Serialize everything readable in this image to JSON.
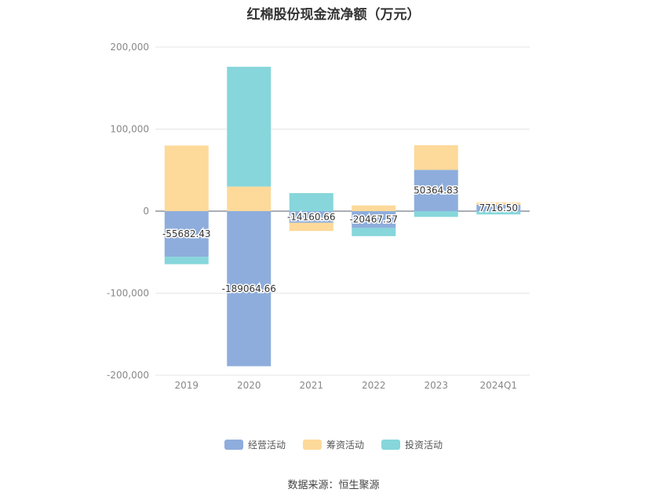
{
  "chart_data": {
    "type": "bar",
    "stacked": true,
    "title": "红棉股份现金流净额（万元）",
    "source": "数据来源：恒生聚源",
    "categories": [
      "2019",
      "2020",
      "2021",
      "2022",
      "2023",
      "2024Q1"
    ],
    "ylim": [
      -200000,
      200000
    ],
    "yticks": [
      200000,
      100000,
      0,
      -100000,
      -200000
    ],
    "ytick_labels": [
      "200,000",
      "100,000",
      "0",
      "-100,000",
      "-200,000"
    ],
    "grid": true,
    "legend_position": "bottom",
    "series": [
      {
        "name": "经营活动",
        "color": "#8eaddc",
        "values": [
          -55682.43,
          -189064.66,
          -14160.66,
          -20467.57,
          50364.83,
          7716.5
        ],
        "labels": [
          "-55682.43",
          "-189064.66",
          "-14160.66",
          "-20467.57",
          "50364.83",
          "7716.50"
        ]
      },
      {
        "name": "筹资活动",
        "color": "#fdd99a",
        "values": [
          80000,
          30000,
          -10000,
          7000,
          30000,
          3000
        ]
      },
      {
        "name": "投资活动",
        "color": "#86d6db",
        "values": [
          -9000,
          146000,
          22000,
          -10000,
          -7000,
          -4000
        ]
      }
    ]
  }
}
